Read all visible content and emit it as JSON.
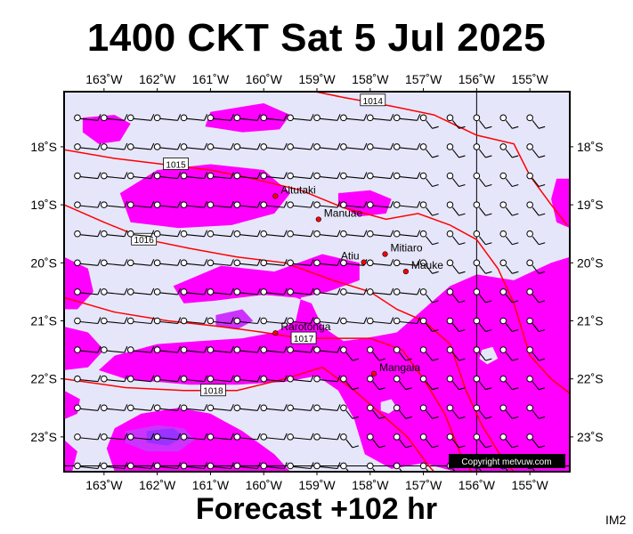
{
  "title": "1400 CKT Sat 5 Jul 2025",
  "subtitle": "Forecast +102 hr",
  "code": "IM2",
  "copyright": "Copyright metvuw.com",
  "colors": {
    "background": "#e6e6fa",
    "rain_light": "#ff00ff",
    "rain_medium": "#cc33ff",
    "rain_heavy": "#9933ff",
    "isobar": "#ff0000",
    "place_marker": "#ff0000",
    "frame": "#000000"
  },
  "map": {
    "lon_min": -163.75,
    "lon_max": -154.25,
    "lat_min": -23.6,
    "lat_max": -17.05,
    "lon_ticks": [
      {
        "lon": -163,
        "label": "163˚W"
      },
      {
        "lon": -162,
        "label": "162˚W"
      },
      {
        "lon": -161,
        "label": "161˚W"
      },
      {
        "lon": -160,
        "label": "160˚W"
      },
      {
        "lon": -159,
        "label": "159˚W"
      },
      {
        "lon": -158,
        "label": "158˚W"
      },
      {
        "lon": -157,
        "label": "157˚W"
      },
      {
        "lon": -156,
        "label": "156˚W"
      },
      {
        "lon": -155,
        "label": "155˚W"
      }
    ],
    "lat_ticks": [
      {
        "lat": -18,
        "label": "18˚S"
      },
      {
        "lat": -19,
        "label": "19˚S"
      },
      {
        "lat": -20,
        "label": "20˚S"
      },
      {
        "lat": -21,
        "label": "21˚S"
      },
      {
        "lat": -22,
        "label": "22˚S"
      },
      {
        "lat": -23,
        "label": "23˚S"
      }
    ],
    "places": [
      {
        "name": "Aitutaki",
        "lon": -159.78,
        "lat": -18.85,
        "label_side": "right"
      },
      {
        "name": "Manuae",
        "lon": -158.97,
        "lat": -19.25,
        "label_side": "right"
      },
      {
        "name": "Mitiaro",
        "lon": -157.72,
        "lat": -19.85,
        "label_side": "right"
      },
      {
        "name": "Atiu",
        "lon": -158.12,
        "lat": -19.99,
        "label_side": "left"
      },
      {
        "name": "Mauke",
        "lon": -157.33,
        "lat": -20.15,
        "label_side": "right"
      },
      {
        "name": "Rarotonga",
        "lon": -159.78,
        "lat": -21.21,
        "label_side": "right"
      },
      {
        "name": "Mangaia",
        "lon": -157.93,
        "lat": -21.91,
        "label_side": "right"
      }
    ],
    "isobars": [
      {
        "label": "1014",
        "label_lon": -157.95,
        "label_lat": -17.2,
        "points": [
          [
            -159.3,
            -17.0
          ],
          [
            -158.5,
            -17.15
          ],
          [
            -157.6,
            -17.3
          ],
          [
            -156.8,
            -17.45
          ],
          [
            -156.0,
            -17.8
          ],
          [
            -155.3,
            -17.95
          ],
          [
            -155.0,
            -18.5
          ],
          [
            -154.6,
            -19.0
          ],
          [
            -154.3,
            -19.35
          ]
        ]
      },
      {
        "label": "1015",
        "label_lon": -161.65,
        "label_lat": -18.3,
        "points": [
          [
            -163.75,
            -18.05
          ],
          [
            -162.8,
            -18.2
          ],
          [
            -161.9,
            -18.3
          ],
          [
            -161.0,
            -18.4
          ],
          [
            -160.2,
            -18.55
          ],
          [
            -159.3,
            -18.75
          ],
          [
            -158.5,
            -19.05
          ],
          [
            -157.7,
            -19.25
          ],
          [
            -157.1,
            -19.15
          ],
          [
            -156.5,
            -19.35
          ],
          [
            -156.0,
            -19.6
          ],
          [
            -155.6,
            -20.1
          ],
          [
            -155.3,
            -20.7
          ],
          [
            -155.0,
            -21.6
          ],
          [
            -154.6,
            -22.0
          ],
          [
            -154.25,
            -22.25
          ]
        ]
      },
      {
        "label": "1016",
        "label_lon": -162.25,
        "label_lat": -19.6,
        "points": [
          [
            -163.75,
            -19.0
          ],
          [
            -163.0,
            -19.3
          ],
          [
            -162.2,
            -19.6
          ],
          [
            -161.4,
            -19.75
          ],
          [
            -160.5,
            -19.9
          ],
          [
            -159.6,
            -20.0
          ],
          [
            -158.7,
            -20.3
          ],
          [
            -158.0,
            -20.5
          ],
          [
            -157.5,
            -20.8
          ],
          [
            -157.0,
            -21.0
          ],
          [
            -156.5,
            -21.4
          ],
          [
            -156.2,
            -22.2
          ],
          [
            -155.9,
            -22.8
          ],
          [
            -155.5,
            -23.4
          ],
          [
            -155.3,
            -23.6
          ]
        ]
      },
      {
        "label": "1017",
        "label_lon": -159.25,
        "label_lat": -21.3,
        "points": [
          [
            -163.75,
            -20.6
          ],
          [
            -162.8,
            -20.85
          ],
          [
            -161.8,
            -21.0
          ],
          [
            -160.8,
            -21.1
          ],
          [
            -160.0,
            -21.2
          ],
          [
            -159.3,
            -21.3
          ],
          [
            -158.6,
            -21.3
          ],
          [
            -158.0,
            -21.3
          ],
          [
            -157.4,
            -21.5
          ],
          [
            -157.0,
            -22.0
          ],
          [
            -156.6,
            -22.6
          ],
          [
            -156.3,
            -23.3
          ],
          [
            -156.1,
            -23.6
          ]
        ]
      },
      {
        "label": "1018",
        "label_lon": -160.95,
        "label_lat": -22.2,
        "points": [
          [
            -163.75,
            -22.0
          ],
          [
            -162.6,
            -22.15
          ],
          [
            -161.5,
            -22.2
          ],
          [
            -160.5,
            -22.2
          ],
          [
            -159.6,
            -22.0
          ],
          [
            -158.9,
            -21.8
          ],
          [
            -158.3,
            -22.2
          ],
          [
            -157.8,
            -22.6
          ],
          [
            -157.3,
            -23.0
          ],
          [
            -156.9,
            -23.5
          ],
          [
            -156.8,
            -23.6
          ]
        ]
      }
    ],
    "rain_light": [
      [
        [
          -163.4,
          -17.5
        ],
        [
          -162.8,
          -17.45
        ],
        [
          -162.5,
          -17.6
        ],
        [
          -162.7,
          -17.9
        ],
        [
          -163.1,
          -17.95
        ],
        [
          -163.4,
          -17.75
        ]
      ],
      [
        [
          -161.0,
          -17.4
        ],
        [
          -160.0,
          -17.25
        ],
        [
          -159.5,
          -17.45
        ],
        [
          -159.7,
          -17.7
        ],
        [
          -160.4,
          -17.75
        ],
        [
          -161.1,
          -17.65
        ]
      ],
      [
        [
          -162.7,
          -18.8
        ],
        [
          -162.0,
          -18.4
        ],
        [
          -161.0,
          -18.3
        ],
        [
          -160.0,
          -18.4
        ],
        [
          -159.5,
          -18.8
        ],
        [
          -159.8,
          -19.15
        ],
        [
          -160.6,
          -19.35
        ],
        [
          -161.6,
          -19.4
        ],
        [
          -162.5,
          -19.3
        ]
      ],
      [
        [
          -158.6,
          -18.8
        ],
        [
          -158.0,
          -18.75
        ],
        [
          -157.6,
          -18.9
        ],
        [
          -157.7,
          -19.15
        ],
        [
          -158.2,
          -19.2
        ],
        [
          -158.6,
          -19.0
        ]
      ],
      [
        [
          -154.5,
          -18.55
        ],
        [
          -154.25,
          -18.55
        ],
        [
          -154.25,
          -19.4
        ],
        [
          -154.5,
          -19.3
        ],
        [
          -154.6,
          -18.9
        ]
      ],
      [
        [
          -163.75,
          -19.9
        ],
        [
          -163.3,
          -20.1
        ],
        [
          -163.2,
          -20.5
        ],
        [
          -163.5,
          -20.8
        ],
        [
          -163.75,
          -20.8
        ]
      ],
      [
        [
          -161.7,
          -20.4
        ],
        [
          -160.8,
          -20.05
        ],
        [
          -159.8,
          -20.15
        ],
        [
          -158.9,
          -19.85
        ],
        [
          -158.2,
          -20.0
        ],
        [
          -158.2,
          -20.3
        ],
        [
          -158.8,
          -20.5
        ],
        [
          -159.3,
          -20.6
        ],
        [
          -159.4,
          -21.0
        ],
        [
          -159.8,
          -21.2
        ],
        [
          -160.4,
          -21.3
        ],
        [
          -161.2,
          -21.35
        ],
        [
          -162.0,
          -21.4
        ],
        [
          -162.8,
          -21.6
        ],
        [
          -163.1,
          -21.85
        ],
        [
          -162.6,
          -22.0
        ],
        [
          -161.4,
          -22.1
        ],
        [
          -160.5,
          -22.1
        ],
        [
          -159.6,
          -22.05
        ],
        [
          -159.0,
          -21.95
        ],
        [
          -158.6,
          -22.2
        ],
        [
          -158.3,
          -22.7
        ],
        [
          -158.1,
          -23.3
        ],
        [
          -157.6,
          -23.55
        ],
        [
          -157.0,
          -23.45
        ],
        [
          -156.4,
          -23.6
        ],
        [
          -154.25,
          -23.6
        ],
        [
          -154.25,
          -19.9
        ],
        [
          -154.6,
          -20.0
        ],
        [
          -155.3,
          -20.3
        ],
        [
          -156.0,
          -20.2
        ],
        [
          -156.5,
          -20.4
        ],
        [
          -157.0,
          -20.8
        ],
        [
          -157.5,
          -21.2
        ],
        [
          -158.1,
          -21.3
        ],
        [
          -158.5,
          -21.35
        ],
        [
          -158.9,
          -21.1
        ],
        [
          -159.1,
          -20.7
        ],
        [
          -159.4,
          -20.6
        ],
        [
          -160.0,
          -20.55
        ],
        [
          -160.9,
          -20.65
        ],
        [
          -161.5,
          -20.7
        ]
      ],
      [
        [
          -163.75,
          -21.1
        ],
        [
          -163.3,
          -21.2
        ],
        [
          -163.0,
          -21.5
        ],
        [
          -163.3,
          -21.8
        ],
        [
          -163.75,
          -21.85
        ]
      ],
      [
        [
          -163.75,
          -22.2
        ],
        [
          -163.45,
          -22.35
        ],
        [
          -163.5,
          -22.6
        ],
        [
          -163.75,
          -22.7
        ]
      ],
      [
        [
          -162.3,
          -22.6
        ],
        [
          -161.6,
          -22.5
        ],
        [
          -161.0,
          -22.6
        ],
        [
          -160.4,
          -22.9
        ],
        [
          -159.8,
          -23.3
        ],
        [
          -159.5,
          -23.6
        ],
        [
          -162.8,
          -23.6
        ],
        [
          -162.95,
          -23.2
        ],
        [
          -162.8,
          -22.85
        ]
      ],
      [
        [
          -163.75,
          -23.05
        ],
        [
          -163.5,
          -23.25
        ],
        [
          -163.6,
          -23.6
        ],
        [
          -163.75,
          -23.6
        ]
      ]
    ],
    "rain_medium": [
      [
        [
          -160.9,
          -20.9
        ],
        [
          -160.4,
          -20.8
        ],
        [
          -160.2,
          -21.0
        ],
        [
          -160.5,
          -21.15
        ],
        [
          -160.9,
          -21.1
        ]
      ],
      [
        [
          -162.6,
          -22.9
        ],
        [
          -162.0,
          -22.8
        ],
        [
          -161.5,
          -22.85
        ],
        [
          -161.3,
          -23.05
        ],
        [
          -161.6,
          -23.25
        ],
        [
          -162.2,
          -23.25
        ],
        [
          -162.6,
          -23.1
        ]
      ]
    ],
    "rain_heavy": [
      [
        [
          -162.2,
          -22.9
        ],
        [
          -161.7,
          -22.85
        ],
        [
          -161.5,
          -23.0
        ],
        [
          -161.8,
          -23.15
        ],
        [
          -162.2,
          -23.1
        ]
      ]
    ],
    "rain_holes": [
      [
        [
          -155.9,
          -21.5
        ],
        [
          -155.7,
          -21.45
        ],
        [
          -155.6,
          -21.65
        ],
        [
          -155.8,
          -21.75
        ],
        [
          -155.95,
          -21.65
        ]
      ],
      [
        [
          -157.8,
          -22.4
        ],
        [
          -157.6,
          -22.35
        ],
        [
          -157.5,
          -22.5
        ],
        [
          -157.65,
          -22.6
        ],
        [
          -157.8,
          -22.55
        ]
      ]
    ],
    "wind_grid": {
      "lon_start": -163.5,
      "lon_step": 0.5,
      "lon_count": 18,
      "lat_start": -17.5,
      "lat_step": -0.5,
      "lat_count": 13
    }
  }
}
